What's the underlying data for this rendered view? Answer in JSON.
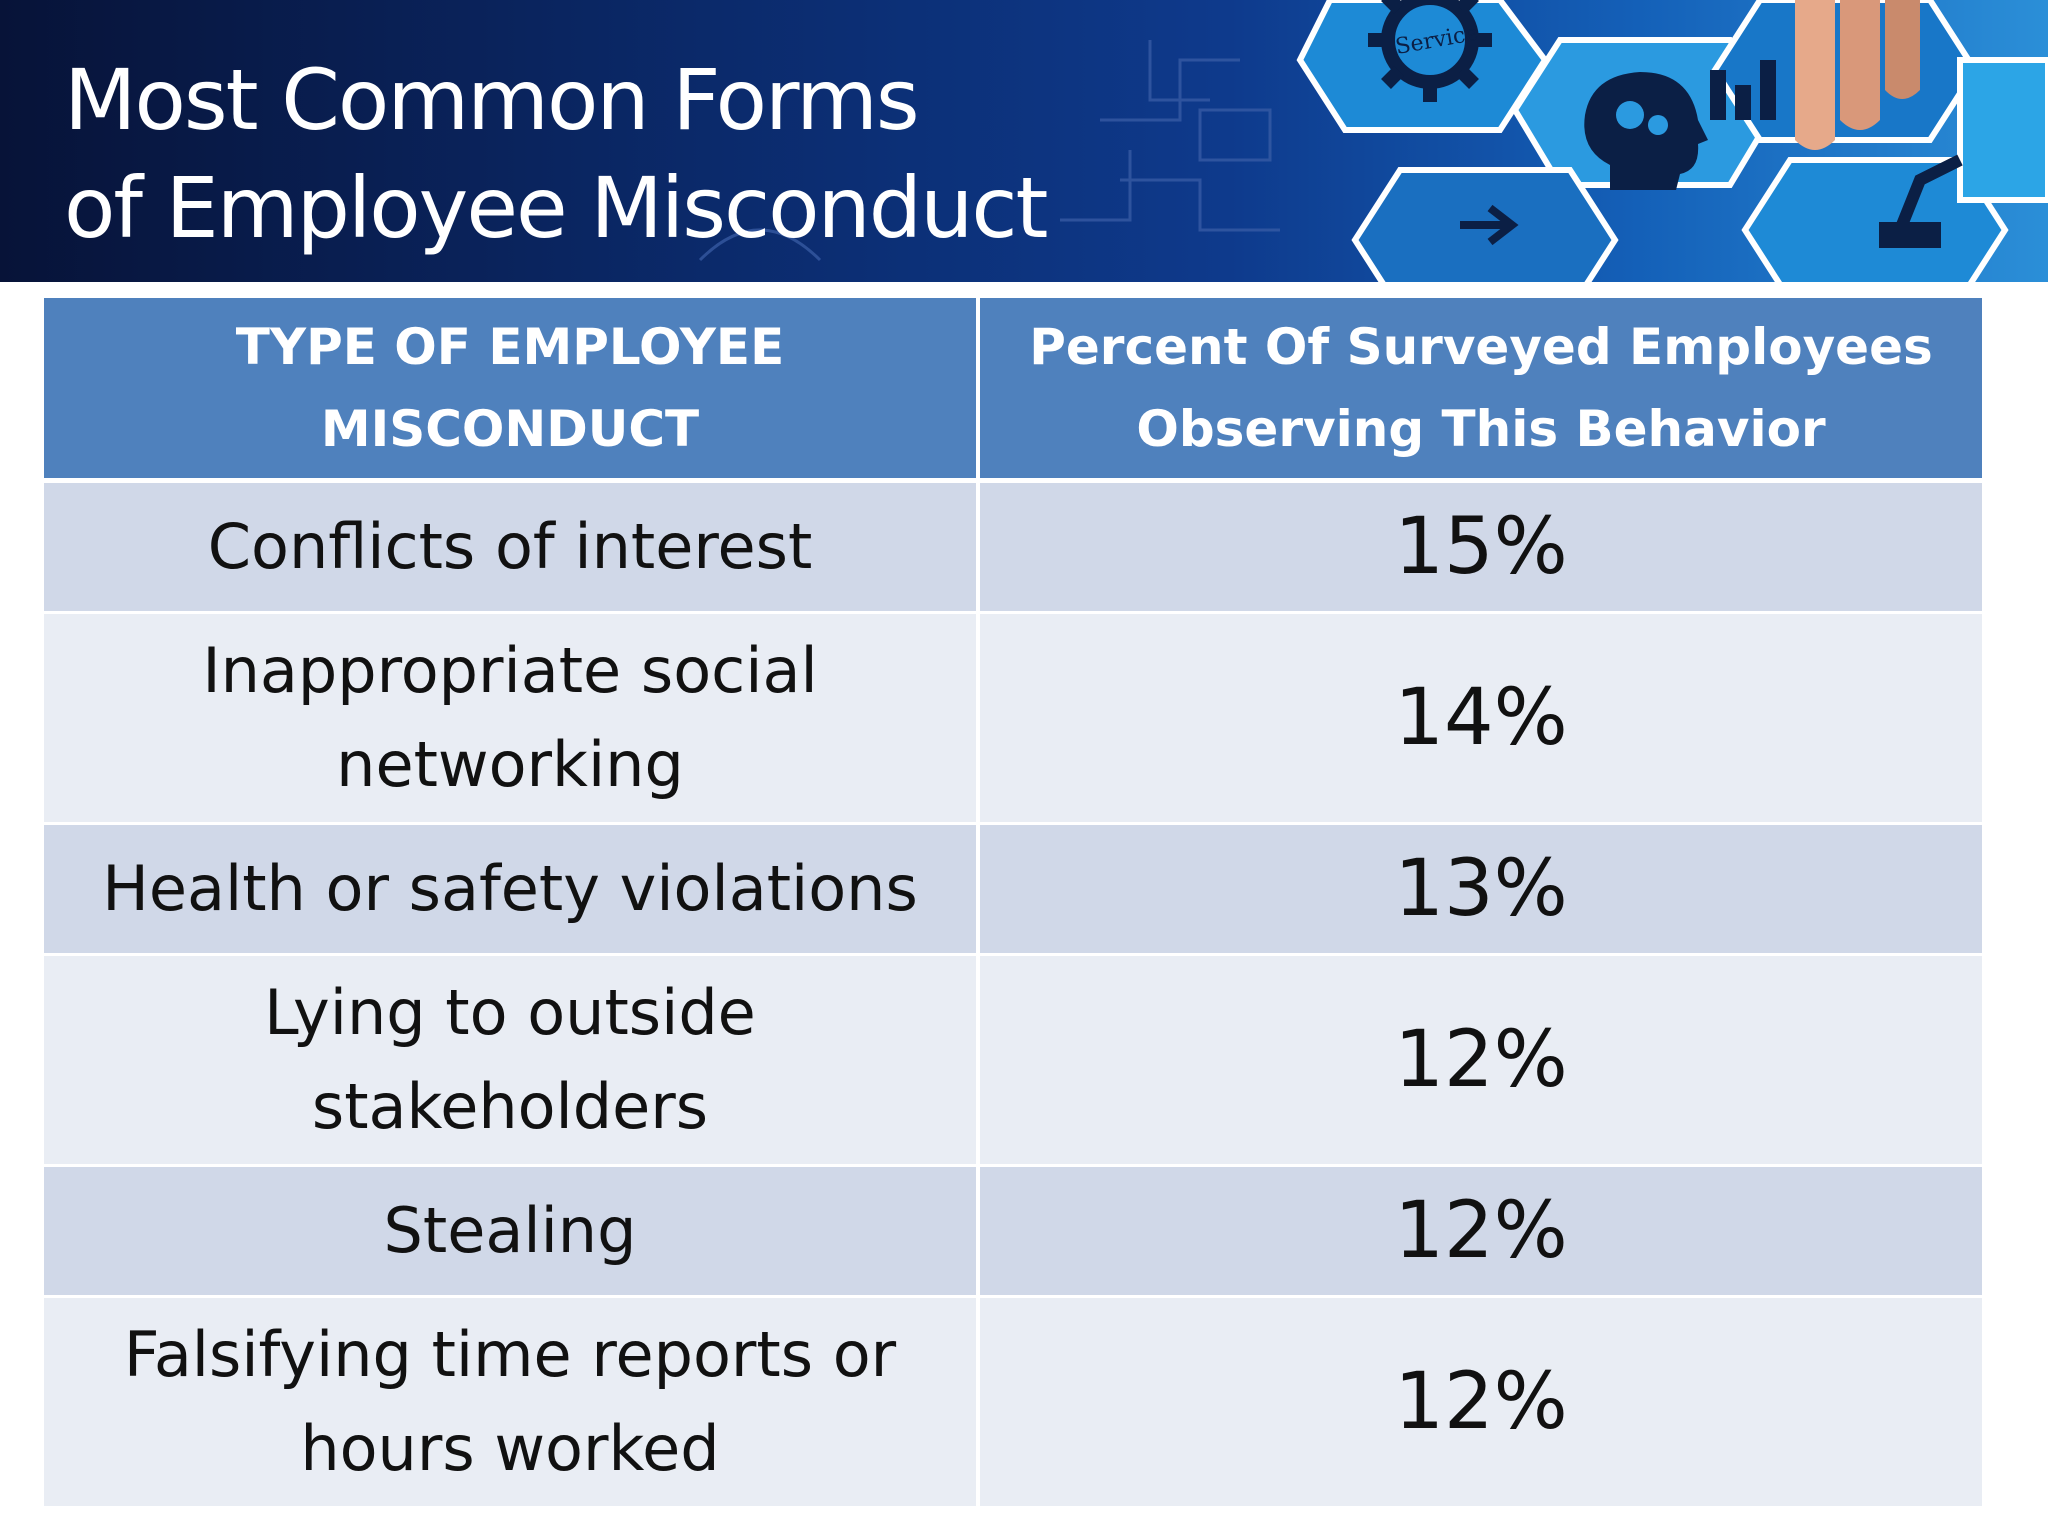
{
  "slide": {
    "title_line1": "Most Common Forms",
    "title_line2": "of Employee Misconduct",
    "banner_icon_label": "Service"
  },
  "table": {
    "headers": [
      "TYPE OF EMPLOYEE MISCONDUCT",
      "Percent Of Surveyed Employees Observing This Behavior"
    ],
    "rows": [
      {
        "type": "Conflicts of interest",
        "percent": "15%"
      },
      {
        "type": "Inappropriate social networking",
        "percent": "14%"
      },
      {
        "type": "Health or safety violations",
        "percent": "13%"
      },
      {
        "type": "Lying to outside stakeholders",
        "percent": "12%"
      },
      {
        "type": "Stealing",
        "percent": "12%"
      },
      {
        "type": "Falsifying time reports or hours worked",
        "percent": "12%"
      }
    ]
  },
  "colors": {
    "header_bg": "#4f81bd",
    "row_band_dark": "#d0d8e8",
    "row_band_light": "#e9edf4",
    "banner_dark": "#071338",
    "banner_light": "#2b8fd8"
  }
}
